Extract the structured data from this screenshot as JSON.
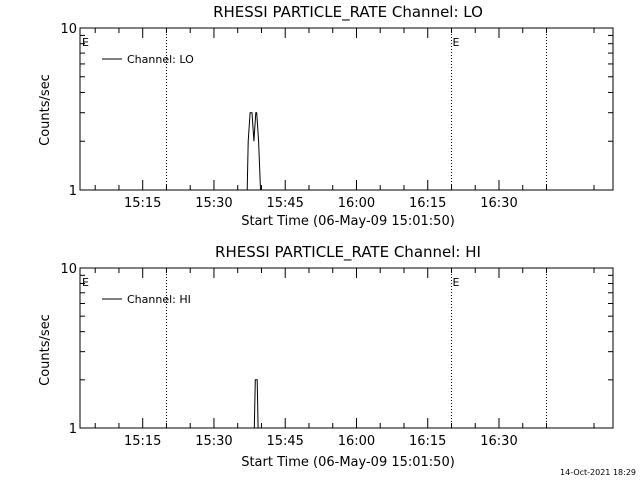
{
  "chart_data": [
    {
      "type": "line",
      "title": "RHESSI PARTICLE_RATE Channel: LO",
      "xlabel": "Start Time (06-May-09 15:01:50)",
      "ylabel": "Counts/sec",
      "x_tick_labels": [
        "15:15",
        "15:30",
        "15:45",
        "16:00",
        "16:15",
        "16:30"
      ],
      "y_tick_labels": [
        "1",
        "10"
      ],
      "y_scale": "log",
      "ylim": [
        1,
        10
      ],
      "xlim_minutes_of_day": [
        901.8,
        1014.0
      ],
      "legend": {
        "placement": "top-left",
        "entries": [
          "Channel: LO"
        ]
      },
      "event_markers": [
        {
          "label": "E",
          "minute_of_day": 902.0,
          "dotted": false
        },
        {
          "label": "",
          "minute_of_day": 920.0,
          "dotted": true
        },
        {
          "label": "E",
          "minute_of_day": 980.0,
          "dotted": true
        },
        {
          "label": "",
          "minute_of_day": 1000.0,
          "dotted": true
        }
      ],
      "series": [
        {
          "x": [
            937.0,
            937.2,
            937.6,
            938.0,
            938.4,
            938.8,
            939.0,
            939.4,
            939.8,
            940.2
          ],
          "y": [
            1.0,
            2.0,
            3.0,
            3.0,
            2.0,
            3.0,
            3.0,
            2.0,
            1.0,
            1.0
          ]
        }
      ]
    },
    {
      "type": "line",
      "title": "RHESSI PARTICLE_RATE Channel: HI",
      "xlabel": "Start Time (06-May-09 15:01:50)",
      "ylabel": "Counts/sec",
      "x_tick_labels": [
        "15:15",
        "15:30",
        "15:45",
        "16:00",
        "16:15",
        "16:30"
      ],
      "y_tick_labels": [
        "1",
        "10"
      ],
      "y_scale": "log",
      "ylim": [
        1,
        10
      ],
      "xlim_minutes_of_day": [
        901.8,
        1014.0
      ],
      "legend": {
        "placement": "top-left",
        "entries": [
          "Channel: HI"
        ]
      },
      "event_markers": [
        {
          "label": "E",
          "minute_of_day": 902.0,
          "dotted": false
        },
        {
          "label": "",
          "minute_of_day": 920.0,
          "dotted": true
        },
        {
          "label": "E",
          "minute_of_day": 980.0,
          "dotted": true
        },
        {
          "label": "",
          "minute_of_day": 1000.0,
          "dotted": true
        }
      ],
      "series": [
        {
          "x": [
            938.5,
            938.7,
            939.1,
            939.3
          ],
          "y": [
            1.0,
            2.0,
            2.0,
            1.0
          ]
        }
      ]
    }
  ],
  "footer": {
    "timestamp": "14-Oct-2021 18:29"
  }
}
